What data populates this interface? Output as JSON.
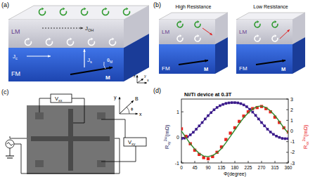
{
  "chart_data": {
    "type": "line",
    "title": "Ni/Ti device at 0.3T",
    "label": "(d)",
    "xlabel": "Φ(degree)",
    "ylabel": {
      "text": "R",
      "sub": "xy",
      "sup": "2ω",
      "unit": "(mΩ)"
    },
    "y2label": {
      "text": "R",
      "sub": "xx",
      "sup": "2ω",
      "unit": "(mΩ)"
    },
    "xlim": [
      0,
      360
    ],
    "xticks": [
      0,
      45,
      90,
      135,
      180,
      225,
      270,
      315,
      360
    ],
    "ylim": [
      -1,
      1.5
    ],
    "yticks": [
      -1,
      0,
      1
    ],
    "y2lim": [
      -3,
      3
    ],
    "y2ticks": [
      -3,
      -2,
      -1,
      0,
      1,
      2,
      3
    ],
    "grid": false,
    "series": [
      {
        "type": "line",
        "marker": "square",
        "color": "#3a1a8a",
        "x": [
          0,
          10,
          20,
          30,
          40,
          50,
          60,
          70,
          80,
          90,
          100,
          110,
          120,
          130,
          140,
          150,
          160,
          170,
          180,
          190,
          200,
          210,
          220,
          230,
          240,
          250,
          260,
          270,
          280,
          290,
          300,
          310,
          320,
          330,
          340,
          350,
          360
        ],
        "values": [
          -0.05,
          -0.03,
          0.02,
          0.1,
          0.2,
          0.32,
          0.45,
          0.58,
          0.72,
          0.85,
          0.97,
          1.08,
          1.17,
          1.24,
          1.29,
          1.33,
          1.35,
          1.36,
          1.36,
          1.35,
          1.32,
          1.27,
          1.2,
          1.1,
          0.99,
          0.86,
          0.72,
          0.58,
          0.45,
          0.32,
          0.21,
          0.12,
          0.05,
          0.0,
          -0.04,
          -0.05,
          -0.05
        ]
      },
      {
        "type": "scatter",
        "marker": "square",
        "color": "#e8231e",
        "axis": "y2",
        "x": [
          0,
          15,
          30,
          45,
          60,
          75,
          90,
          105,
          120,
          135,
          150,
          165,
          180,
          195,
          210,
          225,
          240,
          255,
          270,
          285,
          300,
          315,
          330,
          345,
          360
        ],
        "values": [
          0.2,
          -0.5,
          -1.2,
          -1.8,
          -2.2,
          -2.5,
          -2.6,
          -2.4,
          -2.0,
          -1.5,
          -0.8,
          -0.2,
          0.3,
          0.9,
          1.4,
          1.8,
          2.1,
          2.2,
          2.3,
          2.1,
          1.8,
          1.3,
          0.8,
          0.3,
          -0.1
        ]
      },
      {
        "type": "line",
        "marker": "none",
        "color": "#2e8b2e",
        "axis": "y2",
        "x": [
          0,
          15,
          30,
          45,
          60,
          75,
          90,
          105,
          120,
          135,
          150,
          165,
          180,
          195,
          210,
          225,
          240,
          255,
          270,
          285,
          300,
          315,
          330,
          345,
          360
        ],
        "values": [
          0,
          -0.6,
          -1.2,
          -1.7,
          -2.1,
          -2.35,
          -2.4,
          -2.3,
          -2.05,
          -1.65,
          -1.1,
          -0.5,
          0.1,
          0.7,
          1.25,
          1.7,
          2.05,
          2.3,
          2.35,
          2.2,
          1.9,
          1.45,
          0.9,
          0.3,
          -0.2
        ]
      }
    ]
  },
  "diagram": {
    "a": {
      "label": "(a)",
      "top_layer": "LM",
      "bottom_layer": "FM",
      "j_oh": {
        "text": "J",
        "sub": "OH"
      },
      "j_c": {
        "text": "J",
        "sub": "c"
      },
      "j_s": {
        "text": "J",
        "sub": "s"
      },
      "theta": {
        "text": "θ",
        "sub": "M"
      },
      "magnet": "M",
      "axes": [
        "x",
        "y",
        "z"
      ]
    },
    "b": {
      "label": "(b)",
      "left_title": "High Resistance",
      "right_title": "Low Resistance",
      "top_layer": "LM",
      "bottom_layer": "FM",
      "magnet": "M"
    },
    "c": {
      "label": "(c)",
      "v_xx": {
        "text": "V",
        "sub": "xx"
      },
      "v_xy": {
        "text": "V",
        "sub": "xy"
      },
      "axes": [
        "x",
        "y",
        "B",
        "ϕ"
      ]
    }
  }
}
